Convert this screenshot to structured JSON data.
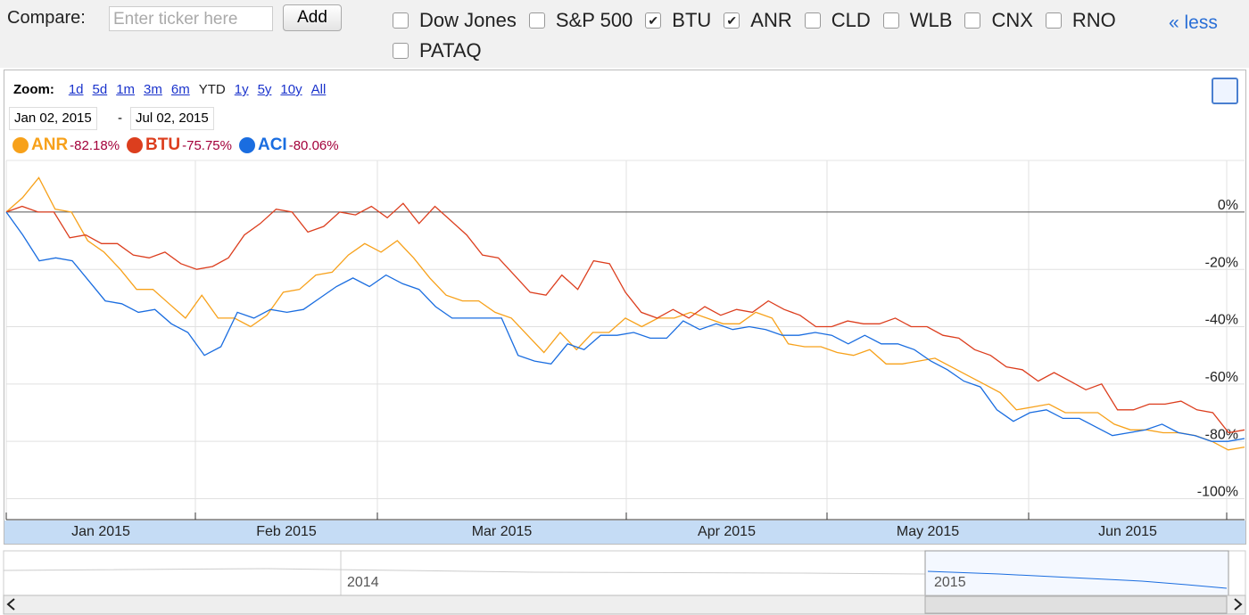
{
  "toolbar": {
    "compare_label": "Compare:",
    "ticker_placeholder": "Enter ticker here",
    "add_button": "Add",
    "checkboxes": [
      {
        "label": "Dow Jones",
        "checked": false
      },
      {
        "label": "S&P 500",
        "checked": false
      },
      {
        "label": "BTU",
        "checked": true
      },
      {
        "label": "ANR",
        "checked": true
      },
      {
        "label": "CLD",
        "checked": false
      },
      {
        "label": "WLB",
        "checked": false
      },
      {
        "label": "CNX",
        "checked": false
      },
      {
        "label": "RNO",
        "checked": false
      },
      {
        "label": "PATAQ",
        "checked": false
      }
    ],
    "less_link": "« less"
  },
  "zoom": {
    "label": "Zoom:",
    "options": [
      {
        "label": "1d",
        "active": false
      },
      {
        "label": "5d",
        "active": false
      },
      {
        "label": "1m",
        "active": false
      },
      {
        "label": "3m",
        "active": false
      },
      {
        "label": "6m",
        "active": false
      },
      {
        "label": "YTD",
        "active": true
      },
      {
        "label": "1y",
        "active": false
      },
      {
        "label": "5y",
        "active": false
      },
      {
        "label": "10y",
        "active": false
      },
      {
        "label": "All",
        "active": false
      }
    ],
    "start_date": "Jan 02, 2015",
    "separator": "-",
    "end_date": "Jul 02, 2015"
  },
  "chart_data": {
    "type": "line",
    "x_labels": [
      "Jan 2015",
      "Feb 2015",
      "Mar 2015",
      "Apr 2015",
      "May 2015",
      "Jun 2015"
    ],
    "ylim": [
      -107,
      18
    ],
    "yticks": [
      {
        "value": 0,
        "label": "0%"
      },
      {
        "value": -20,
        "label": "-20%"
      },
      {
        "value": -40,
        "label": "-40%"
      },
      {
        "value": -60,
        "label": "-60%"
      },
      {
        "value": -80,
        "label": "-80%"
      },
      {
        "value": -100,
        "label": "-100%"
      }
    ],
    "grid": true,
    "series": [
      {
        "name": "ANR",
        "change_label": "-82.18%",
        "color": "#f7a11a",
        "values": [
          0,
          5,
          12,
          1,
          0,
          -10,
          -14,
          -20,
          -27,
          -27,
          -32,
          -37,
          -29,
          -37,
          -37,
          -40,
          -36,
          -28,
          -27,
          -22,
          -21,
          -15,
          -11,
          -14,
          -10,
          -16,
          -23,
          -29,
          -31,
          -31,
          -35,
          -37,
          -43,
          -49,
          -42,
          -48,
          -42,
          -42,
          -37,
          -40,
          -37,
          -37,
          -35,
          -37,
          -39,
          -39,
          -35,
          -37,
          -46,
          -47,
          -47,
          -49,
          -50,
          -48,
          -53,
          -53,
          -52,
          -51,
          -54,
          -57,
          -60,
          -63,
          -69,
          -68,
          -67,
          -70,
          -70,
          -70,
          -74,
          -76,
          -76,
          -77,
          -77,
          -78,
          -80,
          -83,
          -82
        ]
      },
      {
        "name": "BTU",
        "change_label": "-75.75%",
        "color": "#dc3e1e",
        "values": [
          0,
          2,
          0,
          0,
          -9,
          -8,
          -11,
          -11,
          -15,
          -16,
          -14,
          -18,
          -20,
          -19,
          -16,
          -8,
          -4,
          1,
          0,
          -7,
          -5,
          0,
          -1,
          2,
          -2,
          3,
          -4,
          2,
          -3,
          -8,
          -15,
          -16,
          -22,
          -28,
          -29,
          -22,
          -27,
          -17,
          -18,
          -28,
          -35,
          -37,
          -34,
          -37,
          -33,
          -36,
          -34,
          -35,
          -31,
          -34,
          -36,
          -40,
          -40,
          -38,
          -39,
          -39,
          -37,
          -40,
          -40,
          -43,
          -44,
          -48,
          -50,
          -54,
          -55,
          -59,
          -56,
          -59,
          -62,
          -60,
          -69,
          -69,
          -67,
          -67,
          -66,
          -69,
          -70,
          -77,
          -76
        ]
      },
      {
        "name": "ACI",
        "change_label": "-80.06%",
        "color": "#1a6de0",
        "values": [
          0,
          -8,
          -17,
          -16,
          -17,
          -24,
          -31,
          -32,
          -35,
          -34,
          -39,
          -42,
          -50,
          -47,
          -35,
          -37,
          -34,
          -35,
          -34,
          -30,
          -26,
          -23,
          -26,
          -22,
          -25,
          -27,
          -33,
          -37,
          -37,
          -37,
          -37,
          -50,
          -52,
          -53,
          -46,
          -48,
          -43,
          -43,
          -42,
          -44,
          -44,
          -38,
          -41,
          -39,
          -41,
          -40,
          -41,
          -43,
          -43,
          -42,
          -43,
          -46,
          -43,
          -46,
          -46,
          -48,
          -52,
          -55,
          -59,
          -61,
          -69,
          -73,
          -70,
          -69,
          -72,
          -72,
          -75,
          -78,
          -77,
          -76,
          -74,
          -77,
          -78,
          -80,
          -80,
          -79
        ]
      }
    ]
  },
  "navigator": {
    "labels": [
      "2014",
      "2015"
    ]
  }
}
